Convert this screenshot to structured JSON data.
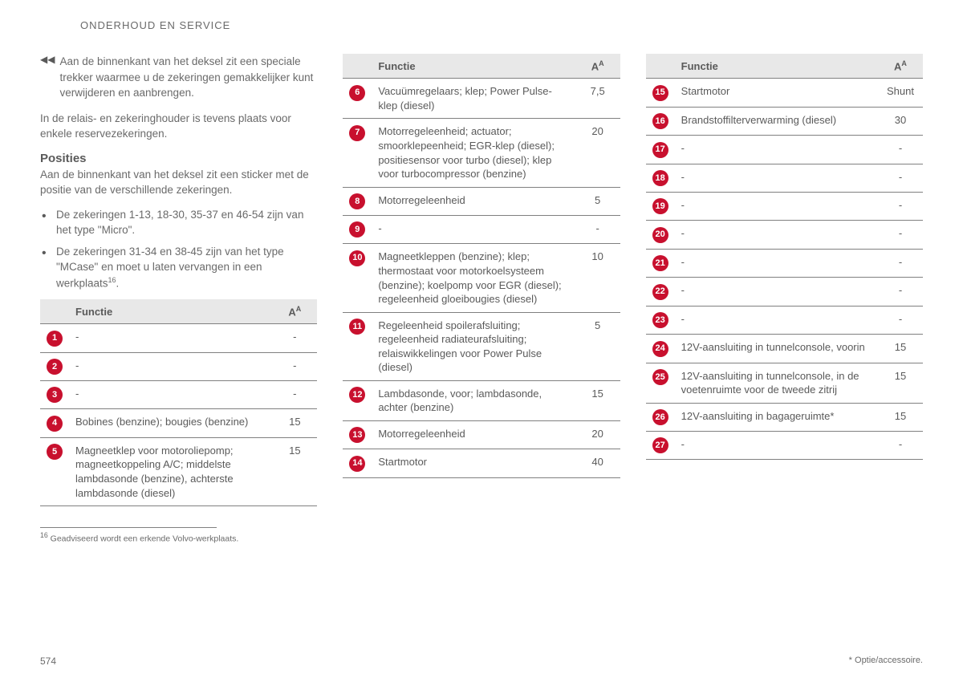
{
  "section_header": "ONDERHOUD EN SERVICE",
  "intro": {
    "p1": "Aan de binnenkant van het deksel zit een speciale trekker waarmee u de zekeringen gemakkelijker kunt verwijderen en aanbrengen.",
    "p2": "In de relais- en zekeringhouder is tevens plaats voor enkele reservezekeringen."
  },
  "posities": {
    "heading": "Posities",
    "desc": "Aan de binnenkant van het deksel zit een sticker met de positie van de verschillende zekeringen.",
    "bullets": [
      "De zekeringen 1-13, 18-30, 35-37 en 46-54 zijn van het type \"Micro\".",
      "De zekeringen 31-34 en 38-45 zijn van het type \"MCase\" en moet u laten vervangen in een werkplaats"
    ],
    "footnote_marker": "16"
  },
  "table_headers": {
    "functie": "Functie",
    "amp": "A",
    "amp_sup": "A"
  },
  "badge_color": "#c8102e",
  "tables": {
    "col1": [
      {
        "n": "1",
        "func": "-",
        "amp": "-"
      },
      {
        "n": "2",
        "func": "-",
        "amp": "-"
      },
      {
        "n": "3",
        "func": "-",
        "amp": "-"
      },
      {
        "n": "4",
        "func": "Bobines (benzine); bougies (benzine)",
        "amp": "15"
      },
      {
        "n": "5",
        "func": "Magneetklep voor motoroliepomp; magneetkoppeling A/C; middelste lambdasonde (benzine), achterste lambdasonde (diesel)",
        "amp": "15"
      }
    ],
    "col2": [
      {
        "n": "6",
        "func": "Vacuümregelaars; klep; Power Pulse-klep (diesel)",
        "amp": "7,5"
      },
      {
        "n": "7",
        "func": "Motorregeleenheid; actuator; smoorklepeenheid; EGR-klep (diesel); positiesensor voor turbo (diesel); klep voor turbocompressor (benzine)",
        "amp": "20"
      },
      {
        "n": "8",
        "func": "Motorregeleenheid",
        "amp": "5"
      },
      {
        "n": "9",
        "func": "-",
        "amp": "-"
      },
      {
        "n": "10",
        "func": "Magneetkleppen (benzine); klep; thermostaat voor motorkoelsysteem (benzine); koelpomp voor EGR (diesel); regeleenheid gloeibougies (diesel)",
        "amp": "10"
      },
      {
        "n": "11",
        "func": "Regeleenheid spoilerafsluiting; regeleenheid radiateurafsluiting; relaiswikkelingen voor Power Pulse (diesel)",
        "amp": "5"
      },
      {
        "n": "12",
        "func": "Lambdasonde, voor; lambdasonde, achter (benzine)",
        "amp": "15"
      },
      {
        "n": "13",
        "func": "Motorregeleenheid",
        "amp": "20"
      },
      {
        "n": "14",
        "func": "Startmotor",
        "amp": "40"
      }
    ],
    "col3": [
      {
        "n": "15",
        "func": "Startmotor",
        "amp": "Shunt"
      },
      {
        "n": "16",
        "func": "Brandstoffilterverwarming (diesel)",
        "amp": "30"
      },
      {
        "n": "17",
        "func": "-",
        "amp": "-"
      },
      {
        "n": "18",
        "func": "-",
        "amp": "-"
      },
      {
        "n": "19",
        "func": "-",
        "amp": "-"
      },
      {
        "n": "20",
        "func": "-",
        "amp": "-"
      },
      {
        "n": "21",
        "func": "-",
        "amp": "-"
      },
      {
        "n": "22",
        "func": "-",
        "amp": "-"
      },
      {
        "n": "23",
        "func": "-",
        "amp": "-"
      },
      {
        "n": "24",
        "func": "12V-aansluiting in tunnelconsole, voorin",
        "amp": "15"
      },
      {
        "n": "25",
        "func": "12V-aansluiting in tunnelconsole, in de voetenruimte voor de tweede zitrij",
        "amp": "15"
      },
      {
        "n": "26",
        "func": "12V-aansluiting in bagageruimte*",
        "amp": "15"
      },
      {
        "n": "27",
        "func": "-",
        "amp": "-"
      }
    ]
  },
  "footnote": {
    "marker": "16",
    "text": "Geadviseerd wordt een erkende Volvo-werkplaats."
  },
  "footer": {
    "page": "574",
    "right": "* Optie/accessoire."
  }
}
